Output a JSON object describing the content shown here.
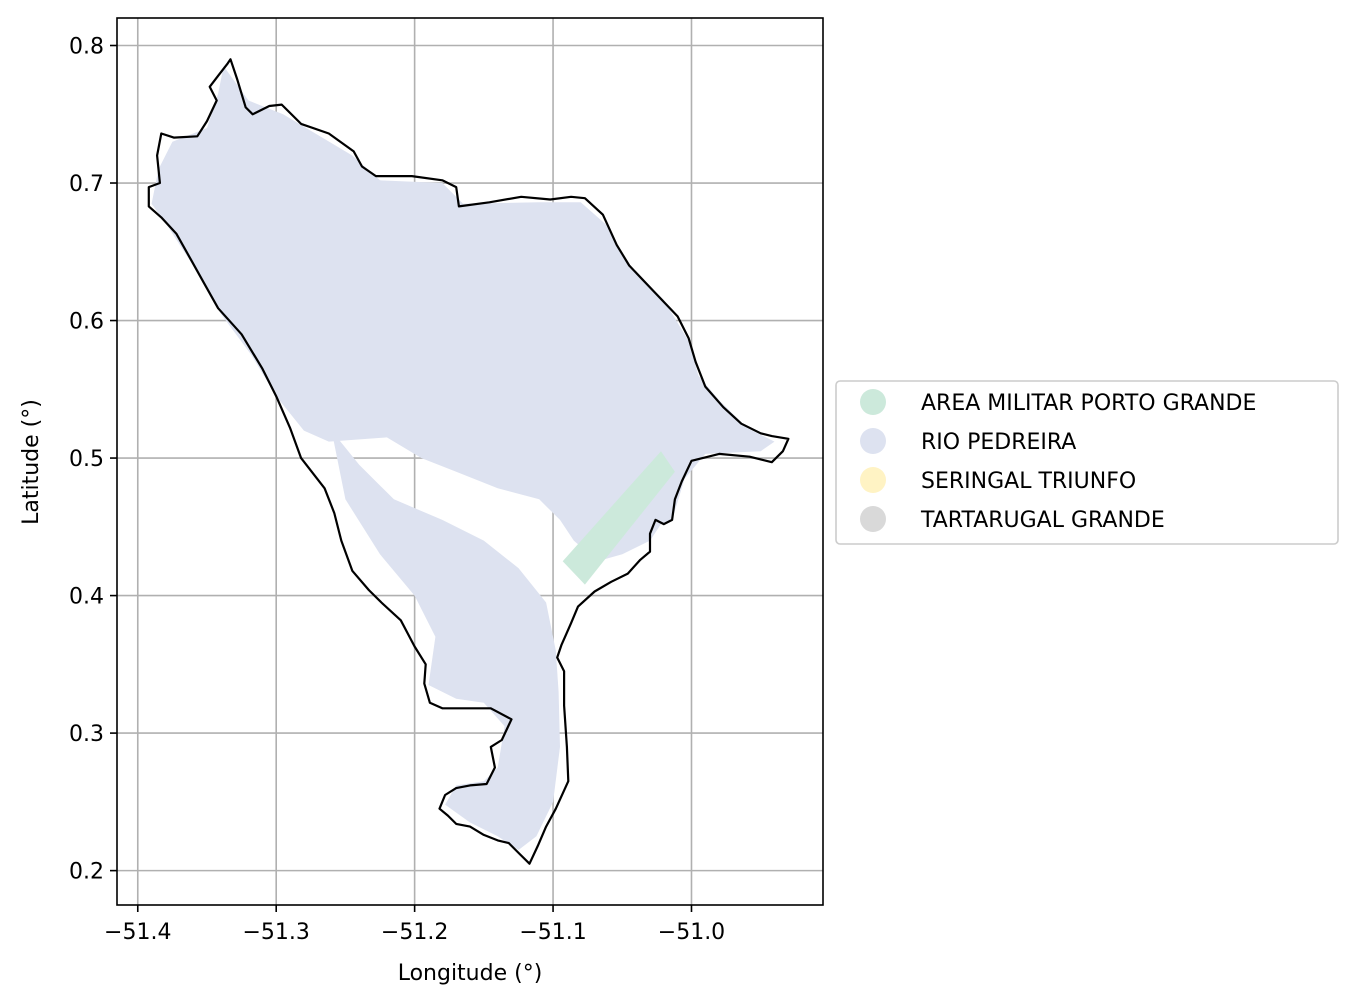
{
  "chart_data": {
    "type": "map",
    "xlabel": "Longitude (°)",
    "ylabel": "Latitude (°)",
    "xlim": [
      -51.415,
      -50.905
    ],
    "ylim": [
      0.175,
      0.82
    ],
    "x_ticks": [
      -51.4,
      -51.3,
      -51.2,
      -51.1,
      -51.0
    ],
    "x_tick_labels": [
      "−51.4",
      "−51.3",
      "−51.2",
      "−51.1",
      "−51.0"
    ],
    "y_ticks": [
      0.2,
      0.3,
      0.4,
      0.5,
      0.6,
      0.7,
      0.8
    ],
    "y_tick_labels": [
      "0.2",
      "0.3",
      "0.4",
      "0.5",
      "0.6",
      "0.7",
      "0.8"
    ],
    "grid": true,
    "legend_position": "right",
    "legend": [
      {
        "label": "AREA MILITAR PORTO GRANDE",
        "color": "#cce9db"
      },
      {
        "label": "RIO PEDREIRA",
        "color": "#dde2f0"
      },
      {
        "label": "SERINGAL TRIUNFO",
        "color": "#fff3c4"
      },
      {
        "label": "TARTARUGAL GRANDE",
        "color": "#d9d9d9"
      }
    ],
    "boundary": [
      [
        -51.333,
        0.79
      ],
      [
        -51.328,
        0.775
      ],
      [
        -51.322,
        0.755
      ],
      [
        -51.317,
        0.75
      ],
      [
        -51.305,
        0.756
      ],
      [
        -51.296,
        0.757
      ],
      [
        -51.282,
        0.743
      ],
      [
        -51.262,
        0.736
      ],
      [
        -51.244,
        0.723
      ],
      [
        -51.238,
        0.712
      ],
      [
        -51.228,
        0.705
      ],
      [
        -51.202,
        0.705
      ],
      [
        -51.18,
        0.702
      ],
      [
        -51.17,
        0.697
      ],
      [
        -51.168,
        0.683
      ],
      [
        -51.146,
        0.686
      ],
      [
        -51.123,
        0.69
      ],
      [
        -51.102,
        0.688
      ],
      [
        -51.087,
        0.69
      ],
      [
        -51.077,
        0.689
      ],
      [
        -51.064,
        0.677
      ],
      [
        -51.054,
        0.655
      ],
      [
        -51.045,
        0.64
      ],
      [
        -51.028,
        0.622
      ],
      [
        -51.01,
        0.603
      ],
      [
        -51.002,
        0.587
      ],
      [
        -50.997,
        0.57
      ],
      [
        -50.99,
        0.552
      ],
      [
        -50.977,
        0.537
      ],
      [
        -50.964,
        0.525
      ],
      [
        -50.95,
        0.518
      ],
      [
        -50.942,
        0.516
      ],
      [
        -50.93,
        0.514
      ],
      [
        -50.934,
        0.505
      ],
      [
        -50.942,
        0.497
      ],
      [
        -50.958,
        0.501
      ],
      [
        -50.98,
        0.503
      ],
      [
        -51.0,
        0.498
      ],
      [
        -51.007,
        0.483
      ],
      [
        -51.012,
        0.47
      ],
      [
        -51.014,
        0.455
      ],
      [
        -51.02,
        0.452
      ],
      [
        -51.026,
        0.455
      ],
      [
        -51.03,
        0.445
      ],
      [
        -51.03,
        0.432
      ],
      [
        -51.037,
        0.426
      ],
      [
        -51.046,
        0.416
      ],
      [
        -51.058,
        0.41
      ],
      [
        -51.07,
        0.403
      ],
      [
        -51.082,
        0.392
      ],
      [
        -51.087,
        0.38
      ],
      [
        -51.094,
        0.364
      ],
      [
        -51.097,
        0.355
      ],
      [
        -51.092,
        0.345
      ],
      [
        -51.092,
        0.32
      ],
      [
        -51.09,
        0.29
      ],
      [
        -51.089,
        0.265
      ],
      [
        -51.098,
        0.245
      ],
      [
        -51.105,
        0.232
      ],
      [
        -51.111,
        0.218
      ],
      [
        -51.117,
        0.205
      ],
      [
        -51.124,
        0.212
      ],
      [
        -51.132,
        0.22
      ],
      [
        -51.14,
        0.222
      ],
      [
        -51.15,
        0.226
      ],
      [
        -51.16,
        0.232
      ],
      [
        -51.17,
        0.234
      ],
      [
        -51.176,
        0.24
      ],
      [
        -51.182,
        0.245
      ],
      [
        -51.178,
        0.255
      ],
      [
        -51.17,
        0.26
      ],
      [
        -51.16,
        0.262
      ],
      [
        -51.148,
        0.263
      ],
      [
        -51.142,
        0.275
      ],
      [
        -51.145,
        0.29
      ],
      [
        -51.137,
        0.295
      ],
      [
        -51.13,
        0.31
      ],
      [
        -51.145,
        0.318
      ],
      [
        -51.162,
        0.318
      ],
      [
        -51.18,
        0.318
      ],
      [
        -51.189,
        0.322
      ],
      [
        -51.193,
        0.336
      ],
      [
        -51.192,
        0.35
      ],
      [
        -51.2,
        0.363
      ],
      [
        -51.21,
        0.382
      ],
      [
        -51.224,
        0.395
      ],
      [
        -51.233,
        0.404
      ],
      [
        -51.245,
        0.418
      ],
      [
        -51.253,
        0.44
      ],
      [
        -51.258,
        0.46
      ],
      [
        -51.265,
        0.478
      ],
      [
        -51.282,
        0.5
      ],
      [
        -51.29,
        0.522
      ],
      [
        -51.3,
        0.545
      ],
      [
        -51.31,
        0.565
      ],
      [
        -51.325,
        0.59
      ],
      [
        -51.342,
        0.609
      ],
      [
        -51.352,
        0.627
      ],
      [
        -51.362,
        0.645
      ],
      [
        -51.372,
        0.663
      ],
      [
        -51.383,
        0.675
      ],
      [
        -51.392,
        0.683
      ],
      [
        -51.392,
        0.697
      ],
      [
        -51.384,
        0.7
      ],
      [
        -51.386,
        0.72
      ],
      [
        -51.383,
        0.736
      ],
      [
        -51.374,
        0.733
      ],
      [
        -51.357,
        0.734
      ],
      [
        -51.35,
        0.745
      ],
      [
        -51.343,
        0.76
      ],
      [
        -51.348,
        0.77
      ],
      [
        -51.342,
        0.778
      ],
      [
        -51.335,
        0.787
      ],
      [
        -51.333,
        0.79
      ]
    ],
    "regions": [
      {
        "name": "RIO PEDREIRA",
        "color": "#dde2f0",
        "polygons": [
          [
            [
              -51.338,
              0.785
            ],
            [
              -51.32,
              0.76
            ],
            [
              -51.295,
              0.75
            ],
            [
              -51.27,
              0.735
            ],
            [
              -51.245,
              0.72
            ],
            [
              -51.225,
              0.702
            ],
            [
              -51.18,
              0.7
            ],
            [
              -51.165,
              0.685
            ],
            [
              -51.11,
              0.686
            ],
            [
              -51.08,
              0.686
            ],
            [
              -51.062,
              0.67
            ],
            [
              -51.045,
              0.64
            ],
            [
              -51.02,
              0.615
            ],
            [
              -51.002,
              0.585
            ],
            [
              -50.995,
              0.56
            ],
            [
              -50.98,
              0.542
            ],
            [
              -50.96,
              0.522
            ],
            [
              -50.94,
              0.512
            ],
            [
              -50.95,
              0.505
            ],
            [
              -50.99,
              0.503
            ],
            [
              -51.005,
              0.485
            ],
            [
              -51.014,
              0.455
            ],
            [
              -51.022,
              0.452
            ],
            [
              -51.03,
              0.44
            ],
            [
              -51.05,
              0.43
            ],
            [
              -51.068,
              0.425
            ],
            [
              -51.085,
              0.44
            ],
            [
              -51.095,
              0.455
            ],
            [
              -51.11,
              0.47
            ],
            [
              -51.14,
              0.478
            ],
            [
              -51.17,
              0.49
            ],
            [
              -51.195,
              0.5
            ],
            [
              -51.22,
              0.515
            ],
            [
              -51.262,
              0.512
            ],
            [
              -51.28,
              0.52
            ],
            [
              -51.3,
              0.545
            ],
            [
              -51.318,
              0.575
            ],
            [
              -51.34,
              0.605
            ],
            [
              -51.36,
              0.64
            ],
            [
              -51.378,
              0.668
            ],
            [
              -51.39,
              0.685
            ],
            [
              -51.385,
              0.71
            ],
            [
              -51.375,
              0.73
            ],
            [
              -51.35,
              0.74
            ],
            [
              -51.342,
              0.765
            ]
          ],
          [
            [
              -51.26,
              0.52
            ],
            [
              -51.25,
              0.47
            ],
            [
              -51.225,
              0.43
            ],
            [
              -51.2,
              0.4
            ],
            [
              -51.185,
              0.37
            ],
            [
              -51.19,
              0.335
            ],
            [
              -51.17,
              0.325
            ],
            [
              -51.15,
              0.322
            ],
            [
              -51.135,
              0.305
            ],
            [
              -51.14,
              0.275
            ],
            [
              -51.15,
              0.265
            ],
            [
              -51.17,
              0.262
            ],
            [
              -51.178,
              0.248
            ],
            [
              -51.16,
              0.235
            ],
            [
              -51.14,
              0.225
            ],
            [
              -51.125,
              0.215
            ],
            [
              -51.112,
              0.225
            ],
            [
              -51.1,
              0.25
            ],
            [
              -51.095,
              0.29
            ],
            [
              -51.096,
              0.33
            ],
            [
              -51.098,
              0.36
            ],
            [
              -51.105,
              0.395
            ],
            [
              -51.125,
              0.42
            ],
            [
              -51.15,
              0.44
            ],
            [
              -51.18,
              0.455
            ],
            [
              -51.215,
              0.47
            ],
            [
              -51.24,
              0.495
            ]
          ]
        ]
      },
      {
        "name": "AREA MILITAR PORTO GRANDE",
        "color": "#cce9db",
        "polygons": [
          [
            [
              -51.093,
              0.425
            ],
            [
              -51.077,
              0.408
            ],
            [
              -51.012,
              0.49
            ],
            [
              -51.022,
              0.505
            ]
          ]
        ]
      }
    ]
  }
}
